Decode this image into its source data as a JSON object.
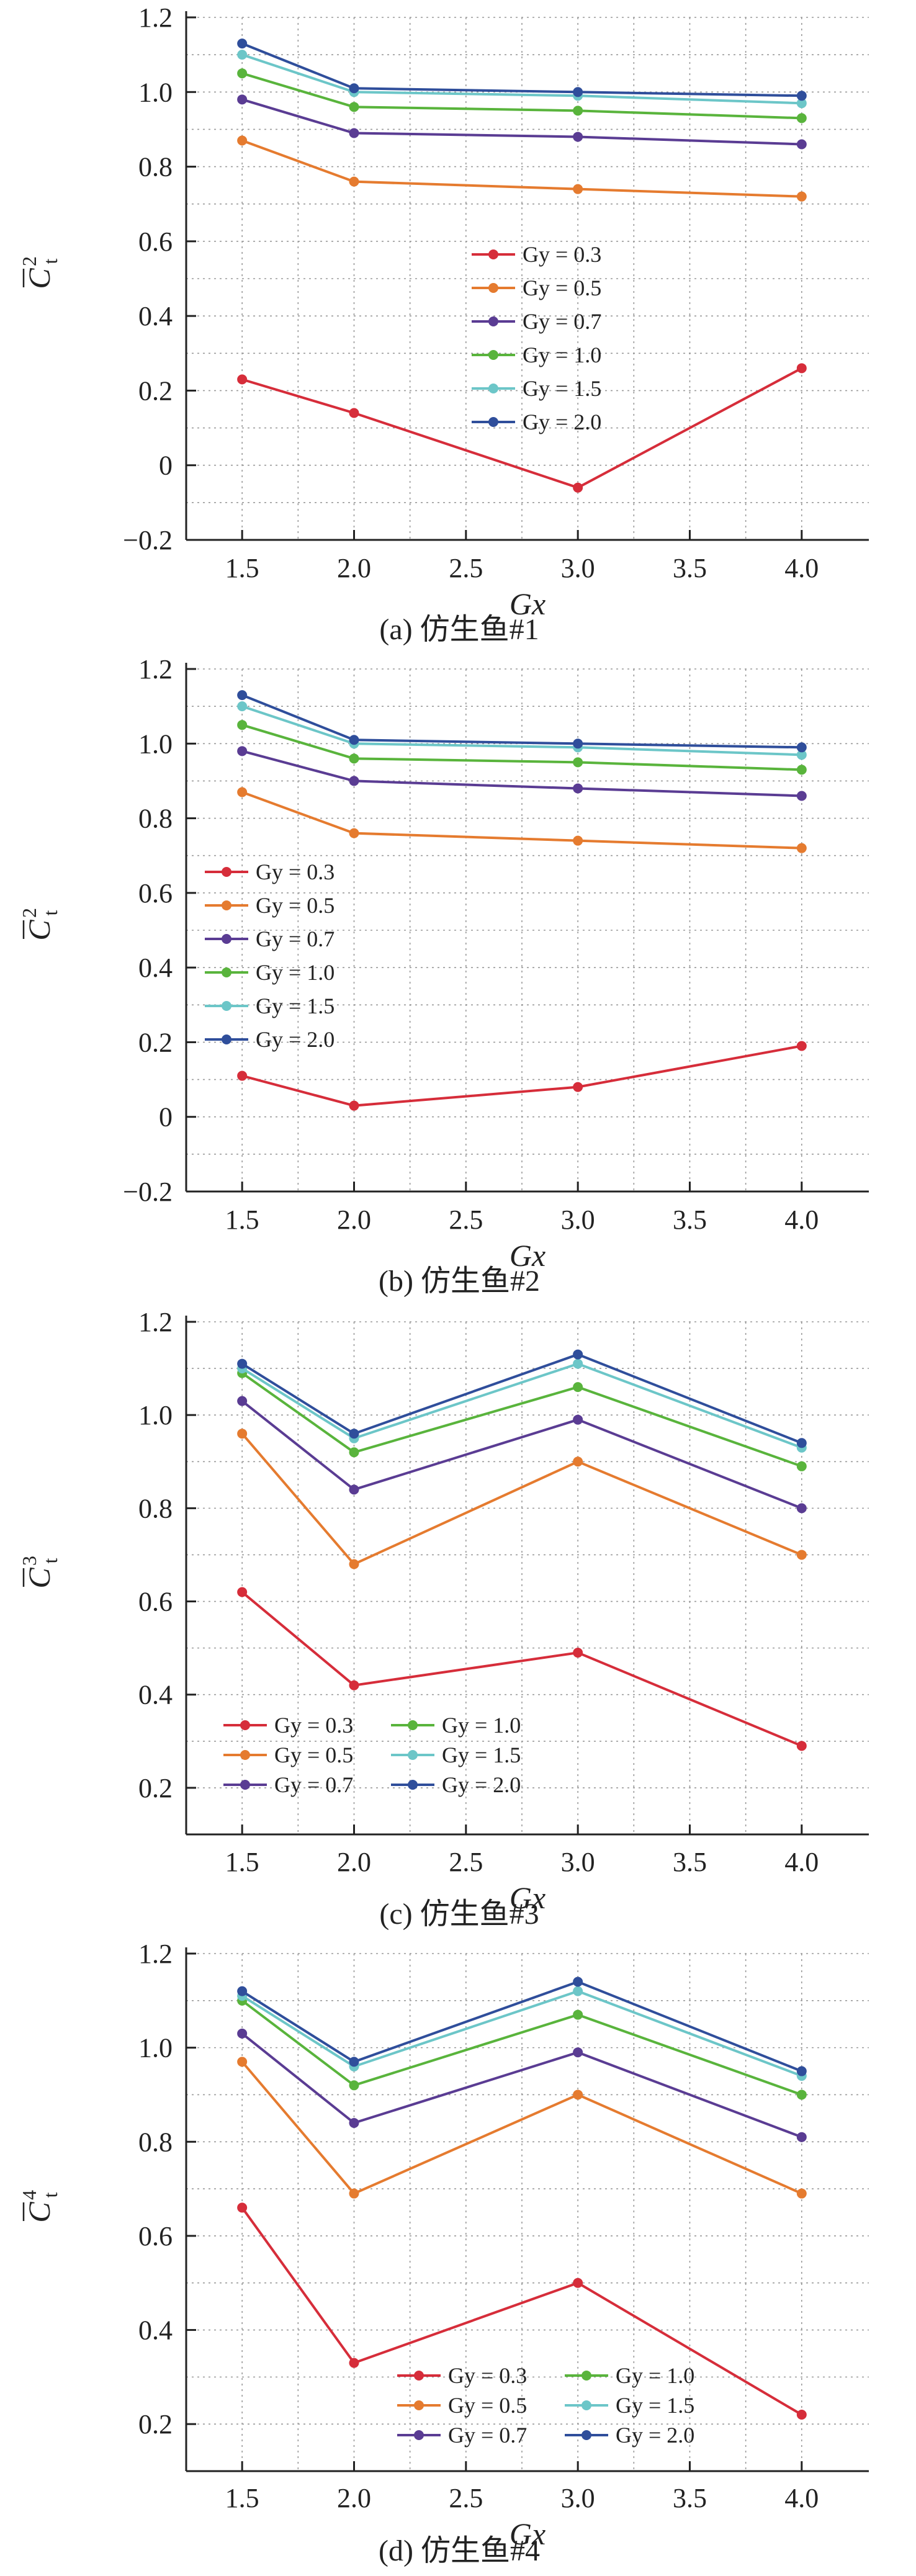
{
  "colors": {
    "Gy = 0.3": "#d62d3a",
    "Gy = 0.5": "#e57b2f",
    "Gy = 0.7": "#5a3c93",
    "Gy = 1.0": "#59b43c",
    "Gy = 1.5": "#6cc6c8",
    "Gy = 2.0": "#2f4e9b"
  },
  "chart_data": [
    {
      "type": "line",
      "caption": "(a) 仿生鱼#1",
      "xlabel": "Gx",
      "ylabel_base": "C",
      "ylabel_sup": "2",
      "ylabel_sub": "t",
      "x": [
        1.5,
        2.0,
        3.0,
        4.0
      ],
      "xlim": [
        1.25,
        4.3
      ],
      "ylim": [
        -0.2,
        1.2
      ],
      "xticks": [
        "1.5",
        "2.0",
        "2.5",
        "3.0",
        "3.5",
        "4.0"
      ],
      "yticks": [
        "−0.2",
        "0",
        "0.2",
        "0.4",
        "0.6",
        "0.8",
        "1.0",
        "1.2"
      ],
      "grid": true,
      "legend_position": "center-right, one column",
      "series": [
        {
          "name": "Gy = 0.3",
          "values": [
            0.23,
            0.14,
            -0.06,
            0.26
          ]
        },
        {
          "name": "Gy = 0.5",
          "values": [
            0.87,
            0.76,
            0.74,
            0.72
          ]
        },
        {
          "name": "Gy = 0.7",
          "values": [
            0.98,
            0.89,
            0.88,
            0.86
          ]
        },
        {
          "name": "Gy = 1.0",
          "values": [
            1.05,
            0.96,
            0.95,
            0.93
          ]
        },
        {
          "name": "Gy = 1.5",
          "values": [
            1.1,
            1.0,
            0.99,
            0.97
          ]
        },
        {
          "name": "Gy = 2.0",
          "values": [
            1.13,
            1.01,
            1.0,
            0.99
          ]
        }
      ]
    },
    {
      "type": "line",
      "caption": "(b) 仿生鱼#2",
      "xlabel": "Gx",
      "ylabel_base": "C",
      "ylabel_sup": "2",
      "ylabel_sub": "t",
      "x": [
        1.5,
        2.0,
        3.0,
        4.0
      ],
      "xlim": [
        1.25,
        4.3
      ],
      "ylim": [
        -0.2,
        1.2
      ],
      "xticks": [
        "1.5",
        "2.0",
        "2.5",
        "3.0",
        "3.5",
        "4.0"
      ],
      "yticks": [
        "−0.2",
        "0",
        "0.2",
        "0.4",
        "0.6",
        "0.8",
        "1.0",
        "1.2"
      ],
      "grid": true,
      "legend_position": "center-left, one column",
      "series": [
        {
          "name": "Gy = 0.3",
          "values": [
            0.11,
            0.03,
            0.08,
            0.19
          ]
        },
        {
          "name": "Gy = 0.5",
          "values": [
            0.87,
            0.76,
            0.74,
            0.72
          ]
        },
        {
          "name": "Gy = 0.7",
          "values": [
            0.98,
            0.9,
            0.88,
            0.86
          ]
        },
        {
          "name": "Gy = 1.0",
          "values": [
            1.05,
            0.96,
            0.95,
            0.93
          ]
        },
        {
          "name": "Gy = 1.5",
          "values": [
            1.1,
            1.0,
            0.99,
            0.97
          ]
        },
        {
          "name": "Gy = 2.0",
          "values": [
            1.13,
            1.01,
            1.0,
            0.99
          ]
        }
      ]
    },
    {
      "type": "line",
      "caption": "(c) 仿生鱼#3",
      "xlabel": "Gx",
      "ylabel_base": "C",
      "ylabel_sup": "3",
      "ylabel_sub": "t",
      "x": [
        1.5,
        2.0,
        3.0,
        4.0
      ],
      "xlim": [
        1.25,
        4.3
      ],
      "ylim": [
        0.1,
        1.2
      ],
      "xticks": [
        "1.5",
        "2.0",
        "2.5",
        "3.0",
        "3.5",
        "4.0"
      ],
      "yticks": [
        "0.2",
        "0.4",
        "0.6",
        "0.8",
        "1.0",
        "1.2"
      ],
      "grid": true,
      "legend_position": "bottom-left, two columns",
      "series": [
        {
          "name": "Gy = 0.3",
          "values": [
            0.62,
            0.42,
            0.49,
            0.29
          ]
        },
        {
          "name": "Gy = 0.5",
          "values": [
            0.96,
            0.68,
            0.9,
            0.7
          ]
        },
        {
          "name": "Gy = 0.7",
          "values": [
            1.03,
            0.84,
            0.99,
            0.8
          ]
        },
        {
          "name": "Gy = 1.0",
          "values": [
            1.09,
            0.92,
            1.06,
            0.89
          ]
        },
        {
          "name": "Gy = 1.5",
          "values": [
            1.1,
            0.95,
            1.11,
            0.93
          ]
        },
        {
          "name": "Gy = 2.0",
          "values": [
            1.11,
            0.96,
            1.13,
            0.94
          ]
        }
      ]
    },
    {
      "type": "line",
      "caption": "(d) 仿生鱼#4",
      "xlabel": "Gx",
      "ylabel_base": "C",
      "ylabel_sup": "4",
      "ylabel_sub": "t",
      "x": [
        1.5,
        2.0,
        3.0,
        4.0
      ],
      "xlim": [
        1.25,
        4.3
      ],
      "ylim": [
        0.1,
        1.2
      ],
      "xticks": [
        "1.5",
        "2.0",
        "2.5",
        "3.0",
        "3.5",
        "4.0"
      ],
      "yticks": [
        "0.2",
        "0.4",
        "0.6",
        "0.8",
        "1.0",
        "1.2"
      ],
      "grid": true,
      "legend_position": "bottom-right, two columns",
      "series": [
        {
          "name": "Gy = 0.3",
          "values": [
            0.66,
            0.33,
            0.5,
            0.22
          ]
        },
        {
          "name": "Gy = 0.5",
          "values": [
            0.97,
            0.69,
            0.9,
            0.69
          ]
        },
        {
          "name": "Gy = 0.7",
          "values": [
            1.03,
            0.84,
            0.99,
            0.81
          ]
        },
        {
          "name": "Gy = 1.0",
          "values": [
            1.1,
            0.92,
            1.07,
            0.9
          ]
        },
        {
          "name": "Gy = 1.5",
          "values": [
            1.11,
            0.96,
            1.12,
            0.94
          ]
        },
        {
          "name": "Gy = 2.0",
          "values": [
            1.12,
            0.97,
            1.14,
            0.95
          ]
        }
      ]
    }
  ]
}
